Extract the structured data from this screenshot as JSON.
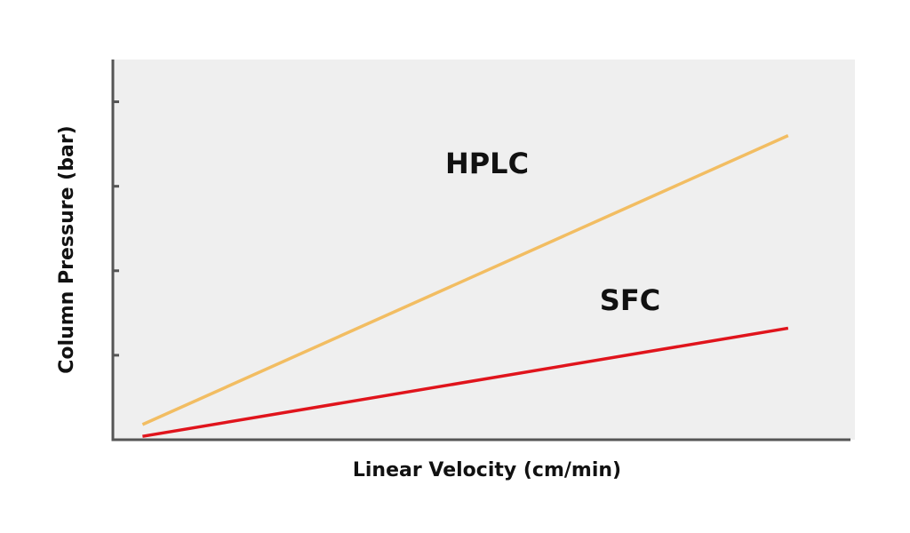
{
  "chart_data": {
    "type": "line",
    "x_label": "Linear Velocity (cm/min)",
    "y_label": "Column Pressure (bar)",
    "x": [
      0.4,
      9.1
    ],
    "series": [
      {
        "name": "HPLC",
        "color": "#f2bd62",
        "values": [
          0.18,
          3.6
        ]
      },
      {
        "name": "SFC",
        "color": "#e0141c",
        "values": [
          0.04,
          1.32
        ]
      }
    ],
    "xlim": [
      0,
      10
    ],
    "ylim": [
      0,
      4.5
    ],
    "yticks": [
      1,
      2,
      3,
      4
    ]
  }
}
